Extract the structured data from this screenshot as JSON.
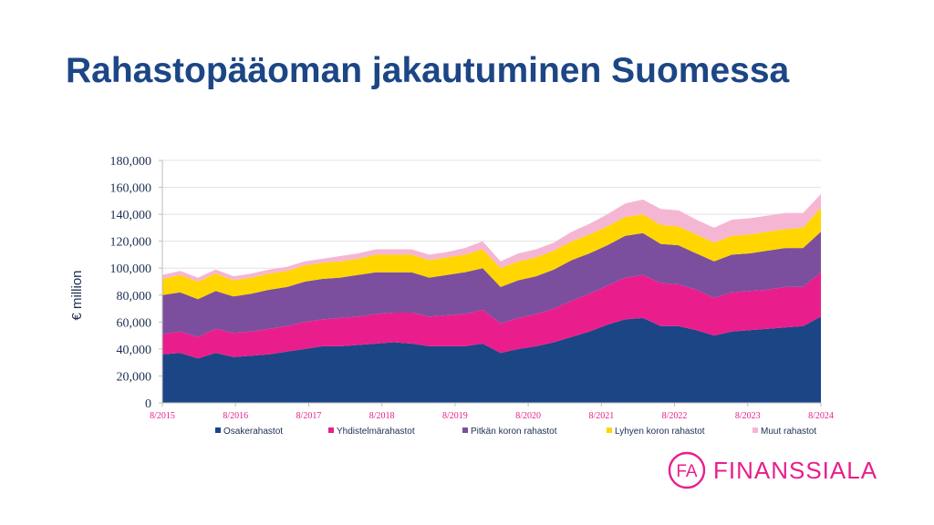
{
  "page": {
    "title": "Rahastopääoman jakautuminen Suomessa"
  },
  "logo": {
    "monogram": "FA",
    "text": "FINANSSIALA",
    "color": "#e91e8c"
  },
  "chart_data": {
    "type": "area",
    "stacked": true,
    "title": "",
    "ylabel": "€ million",
    "xlabel": "",
    "ylim": [
      0,
      180000
    ],
    "yticks": [
      0,
      20000,
      40000,
      60000,
      80000,
      100000,
      120000,
      140000,
      160000,
      180000
    ],
    "ytick_labels": [
      "0",
      "20,000",
      "40,000",
      "60,000",
      "80,000",
      "100,000",
      "120,000",
      "140,000",
      "160,000",
      "180,000"
    ],
    "x_tick_labels": [
      "8/2015",
      "8/2016",
      "8/2017",
      "8/2018",
      "8/2019",
      "8/2020",
      "8/2021",
      "8/2022",
      "8/2023",
      "8/2024"
    ],
    "grid": true,
    "legend_position": "bottom",
    "x": [
      "8/2015",
      "11/2015",
      "2/2016",
      "5/2016",
      "8/2016",
      "11/2016",
      "2/2017",
      "5/2017",
      "8/2017",
      "11/2017",
      "2/2018",
      "5/2018",
      "8/2018",
      "11/2018",
      "2/2019",
      "5/2019",
      "8/2019",
      "11/2019",
      "2/2020",
      "3/2020",
      "5/2020",
      "8/2020",
      "11/2020",
      "2/2021",
      "5/2021",
      "8/2021",
      "11/2021",
      "2/2022",
      "5/2022",
      "8/2022",
      "11/2022",
      "2/2023",
      "5/2023",
      "8/2023",
      "11/2023",
      "2/2024",
      "5/2024",
      "8/2024"
    ],
    "series": [
      {
        "name": "Osakerahastot",
        "color": "#1b4585",
        "values": [
          36000,
          37000,
          33000,
          37000,
          34000,
          35000,
          36000,
          38000,
          40000,
          42000,
          42000,
          43000,
          44000,
          45000,
          44000,
          42000,
          42000,
          42000,
          44000,
          37000,
          40000,
          42000,
          45000,
          49000,
          53000,
          58000,
          62000,
          63000,
          57000,
          57000,
          54000,
          50000,
          53000,
          54000,
          55000,
          56000,
          57000,
          64000
        ]
      },
      {
        "name": "Yhdistelmärahastot",
        "color": "#e91e8c",
        "values": [
          15000,
          16000,
          16000,
          18000,
          18000,
          18000,
          19000,
          19000,
          20000,
          20000,
          21000,
          21000,
          22000,
          22000,
          23000,
          22000,
          23000,
          24000,
          25000,
          22000,
          23000,
          24000,
          25000,
          27000,
          28000,
          29000,
          31000,
          32000,
          32000,
          31000,
          30000,
          28000,
          29000,
          29000,
          29000,
          30000,
          29000,
          33000
        ]
      },
      {
        "name": "Pitkän koron rahastot",
        "color": "#7b4f9e",
        "values": [
          29000,
          29000,
          28000,
          28000,
          27000,
          28000,
          29000,
          29000,
          30000,
          30000,
          30000,
          31000,
          31000,
          30000,
          30000,
          29000,
          30000,
          31000,
          31000,
          27000,
          28000,
          28000,
          29000,
          30000,
          30000,
          30000,
          31000,
          31000,
          29000,
          29000,
          27000,
          27000,
          28000,
          28000,
          29000,
          29000,
          29000,
          30000
        ]
      },
      {
        "name": "Lyhyen koron rahastot",
        "color": "#ffd600",
        "values": [
          12000,
          13000,
          13000,
          13000,
          12000,
          12000,
          12000,
          12000,
          12000,
          12000,
          12000,
          12000,
          13000,
          13000,
          13000,
          13000,
          13000,
          13000,
          14000,
          14000,
          14000,
          14000,
          14000,
          14000,
          14000,
          14000,
          14000,
          14000,
          14000,
          14000,
          14000,
          14000,
          14000,
          14000,
          14000,
          14000,
          15000,
          18000
        ]
      },
      {
        "name": "Muut rahastot",
        "color": "#f5b6d4",
        "values": [
          3000,
          3000,
          3000,
          3000,
          3000,
          3000,
          3000,
          3000,
          3000,
          3000,
          4000,
          4000,
          4000,
          4000,
          4000,
          4000,
          4000,
          5000,
          6000,
          5000,
          6000,
          6000,
          6000,
          7000,
          8000,
          9000,
          10000,
          11000,
          12000,
          12000,
          11000,
          11000,
          12000,
          12000,
          12000,
          12000,
          11000,
          10000
        ]
      }
    ]
  }
}
